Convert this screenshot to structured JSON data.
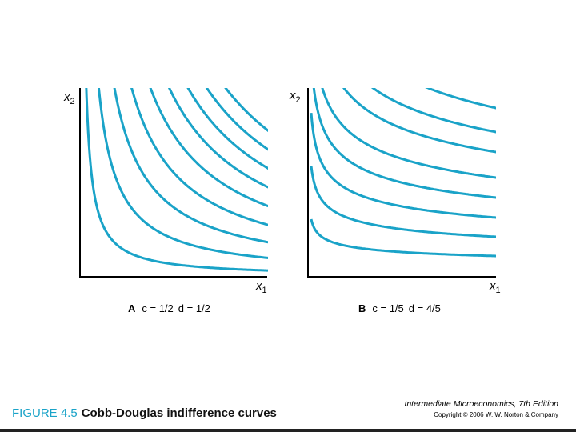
{
  "panels": [
    {
      "y_axis": {
        "base": "x",
        "sub": "2"
      },
      "x_axis": {
        "base": "x",
        "sub": "1"
      },
      "label": "A",
      "caption_c": "c = 1/2",
      "caption_d": "d = 1/2"
    },
    {
      "y_axis": {
        "base": "x",
        "sub": "2"
      },
      "x_axis": {
        "base": "x",
        "sub": "1"
      },
      "label": "B",
      "caption_c": "c = 1/5",
      "caption_d": "d = 4/5"
    }
  ],
  "footer": {
    "figure": "FIGURE 4.5",
    "title": "Cobb-Douglas indifference curves",
    "book": "Intermediate Microeconomics, 7th Edition",
    "copyright": "Copyright © 2006 W. W. Norton & Company"
  }
}
